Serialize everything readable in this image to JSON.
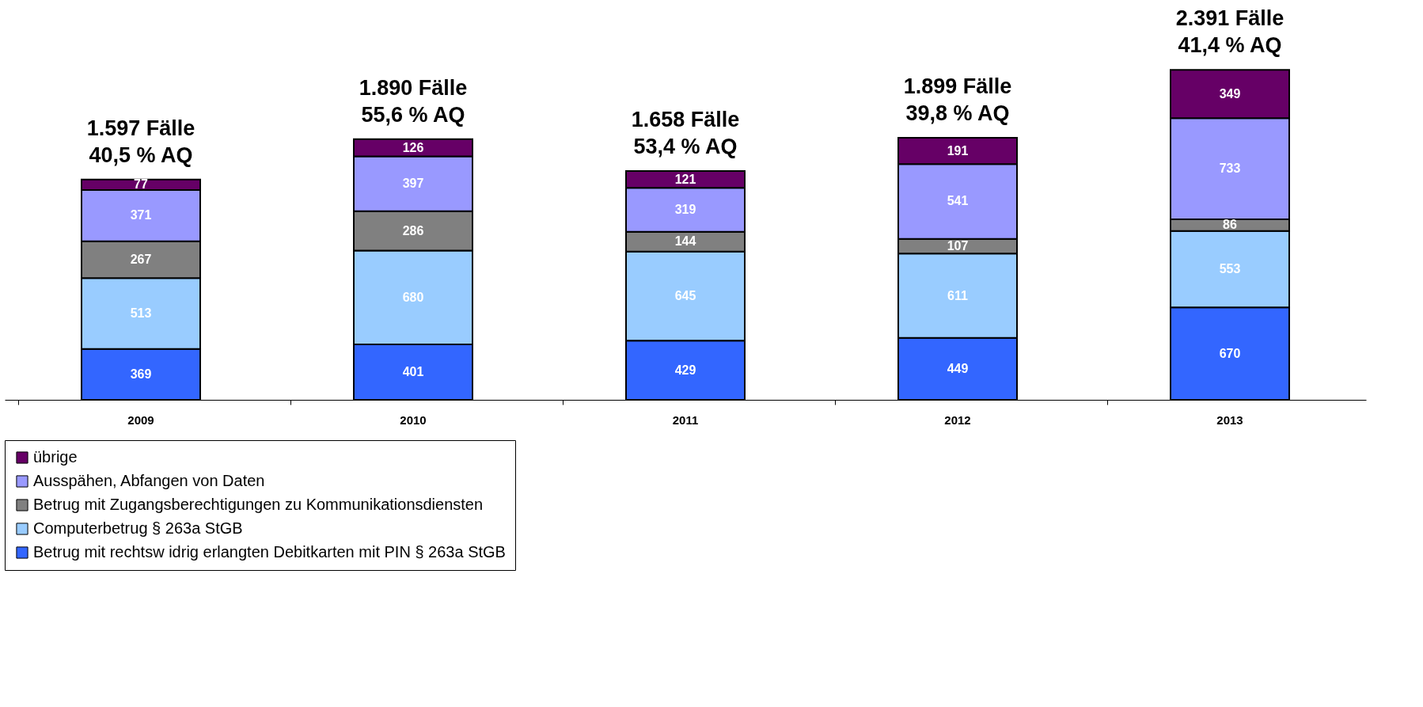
{
  "chart_data": {
    "type": "bar",
    "stacked": true,
    "data_labels": true,
    "legend": "bottom",
    "categories": [
      "2009",
      "2010",
      "2011",
      "2012",
      "2013"
    ],
    "series": [
      {
        "name": "Betrug mit rechtsw idrig erlangten Debitkarten mit PIN § 263a StGB",
        "color": "#3366ff",
        "values": [
          369,
          401,
          429,
          449,
          670
        ]
      },
      {
        "name": "Computerbetrug § 263a StGB",
        "color": "#99ccff",
        "values": [
          513,
          680,
          645,
          611,
          553
        ]
      },
      {
        "name": "Betrug mit Zugangsberechtigungen zu Kommunikationsdiensten",
        "color": "#808080",
        "values": [
          267,
          286,
          144,
          107,
          86
        ]
      },
      {
        "name": "Ausspähen, Abfangen von Daten",
        "color": "#9999ff",
        "values": [
          371,
          397,
          319,
          541,
          733
        ]
      },
      {
        "name": "übrige",
        "color": "#660066",
        "values": [
          77,
          126,
          121,
          191,
          349
        ]
      }
    ],
    "totals": [
      "1.597 Fälle\n40,5 % AQ",
      "1.890 Fälle\n55,6 % AQ",
      "1.658 Fälle\n53,4 % AQ",
      "1.899 Fälle\n39,8 % AQ",
      "2.391 Fälle\n41,4 % AQ"
    ]
  }
}
